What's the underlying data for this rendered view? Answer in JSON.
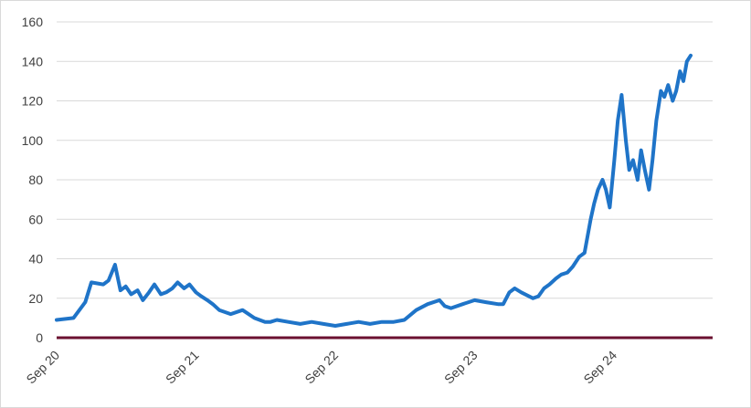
{
  "chart_data": {
    "type": "line",
    "title": "",
    "xlabel": "",
    "ylabel": "",
    "ylim": [
      0,
      160
    ],
    "yticks": [
      "0",
      "20",
      "40",
      "60",
      "80",
      "100",
      "120",
      "140",
      "160"
    ],
    "xticks": [
      "Sep 20",
      "Sep 21",
      "Sep 22",
      "Sep 23",
      "Sep 24"
    ],
    "grid": "horizontal",
    "legend": "none",
    "series": [
      {
        "color": "#1f74c8",
        "x": [
          "2020-09-01",
          "2020-10-15",
          "2020-11-15",
          "2020-12-01",
          "2021-01-01",
          "2021-01-15",
          "2021-02-01",
          "2021-02-15",
          "2021-03-01",
          "2021-03-15",
          "2021-04-01",
          "2021-04-15",
          "2021-05-01",
          "2021-05-15",
          "2021-06-01",
          "2021-06-15",
          "2021-07-01",
          "2021-07-15",
          "2021-08-01",
          "2021-08-15",
          "2021-09-01",
          "2021-09-15",
          "2021-10-01",
          "2021-10-15",
          "2021-11-01",
          "2021-12-01",
          "2022-01-01",
          "2022-02-01",
          "2022-03-01",
          "2022-03-15",
          "2022-04-01",
          "2022-05-01",
          "2022-06-01",
          "2022-07-01",
          "2022-08-01",
          "2022-09-01",
          "2022-10-01",
          "2022-11-01",
          "2022-12-01",
          "2023-01-01",
          "2023-02-01",
          "2023-03-01",
          "2023-04-01",
          "2023-05-01",
          "2023-06-01",
          "2023-06-15",
          "2023-07-01",
          "2023-08-01",
          "2023-09-01",
          "2023-10-01",
          "2023-11-01",
          "2023-11-15",
          "2023-12-01",
          "2023-12-15",
          "2024-01-01",
          "2024-02-01",
          "2024-02-15",
          "2024-03-01",
          "2024-03-15",
          "2024-04-01",
          "2024-04-15",
          "2024-05-01",
          "2024-05-15",
          "2024-06-01",
          "2024-06-15",
          "2024-07-01",
          "2024-07-10",
          "2024-07-20",
          "2024-08-01",
          "2024-08-10",
          "2024-08-20",
          "2024-09-01",
          "2024-09-10",
          "2024-09-20",
          "2024-10-01",
          "2024-10-10",
          "2024-10-20",
          "2024-11-01",
          "2024-11-10",
          "2024-11-20",
          "2024-12-01",
          "2024-12-10",
          "2024-12-20",
          "2025-01-01",
          "2025-01-10",
          "2025-01-20",
          "2025-02-01",
          "2025-02-10",
          "2025-02-20",
          "2025-03-01",
          "2025-03-10",
          "2025-03-20"
        ],
        "y": [
          9,
          10,
          18,
          28,
          27,
          29,
          37,
          24,
          26,
          22,
          24,
          19,
          23,
          27,
          22,
          23,
          25,
          28,
          25,
          27,
          23,
          21,
          19,
          17,
          14,
          12,
          14,
          10,
          8,
          8,
          9,
          8,
          7,
          8,
          7,
          6,
          7,
          8,
          7,
          8,
          8,
          9,
          14,
          17,
          19,
          16,
          15,
          17,
          19,
          18,
          17,
          17,
          23,
          25,
          23,
          20,
          21,
          25,
          27,
          30,
          32,
          33,
          36,
          41,
          43,
          60,
          68,
          75,
          80,
          75,
          66,
          90,
          110,
          123,
          100,
          85,
          90,
          80,
          95,
          85,
          75,
          90,
          110,
          125,
          122,
          128,
          120,
          125,
          135,
          130,
          140,
          143
        ]
      }
    ]
  }
}
